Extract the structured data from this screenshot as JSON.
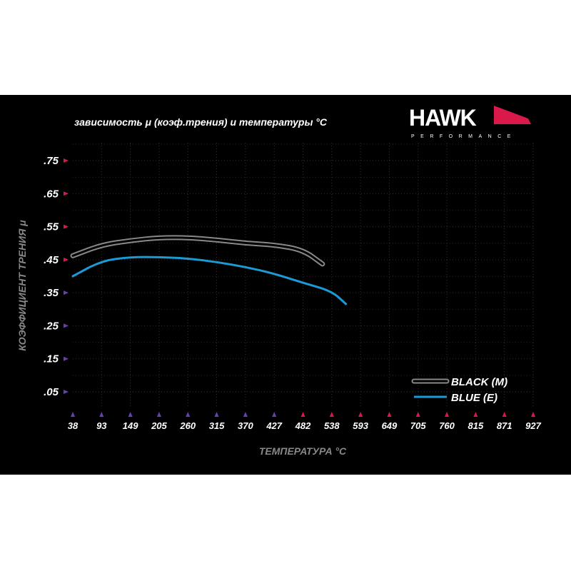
{
  "chart_data": {
    "type": "line",
    "title": "зависимость μ (коэф.трения) и температуры °C",
    "xlabel": "ТЕМПЕРАТУРА °C",
    "ylabel": "КОЭФФИЦИЕНТ ТРЕНИЯ μ",
    "x_ticks": [
      38,
      93,
      149,
      205,
      260,
      315,
      370,
      427,
      482,
      538,
      593,
      649,
      705,
      760,
      815,
      871,
      927
    ],
    "y_ticks": [
      ".05",
      ".15",
      ".25",
      ".35",
      ".45",
      ".55",
      ".65",
      ".75"
    ],
    "xlim": [
      38,
      927
    ],
    "ylim": [
      0.05,
      0.75
    ],
    "grid": true,
    "legend_position": "bottom-right",
    "series": [
      {
        "name": "BLACK (M)",
        "color": "#9a9a9a",
        "x": [
          38,
          93,
          149,
          205,
          260,
          315,
          370,
          427,
          482,
          520
        ],
        "y": [
          0.462,
          0.495,
          0.508,
          0.517,
          0.517,
          0.51,
          0.5,
          0.495,
          0.48,
          0.437
        ]
      },
      {
        "name": "BLUE (E)",
        "color": "#1a9bd7",
        "x": [
          38,
          93,
          149,
          205,
          260,
          315,
          370,
          427,
          482,
          538,
          565
        ],
        "y": [
          0.4,
          0.447,
          0.458,
          0.458,
          0.454,
          0.443,
          0.428,
          0.408,
          0.38,
          0.355,
          0.316
        ]
      }
    ]
  },
  "logo": {
    "brand": "HAWK",
    "sub": "PERFORMANCE"
  },
  "colors": {
    "axis_top": "#d8194a",
    "axis_bottom": "#5a3fb0",
    "background": "#000000"
  }
}
